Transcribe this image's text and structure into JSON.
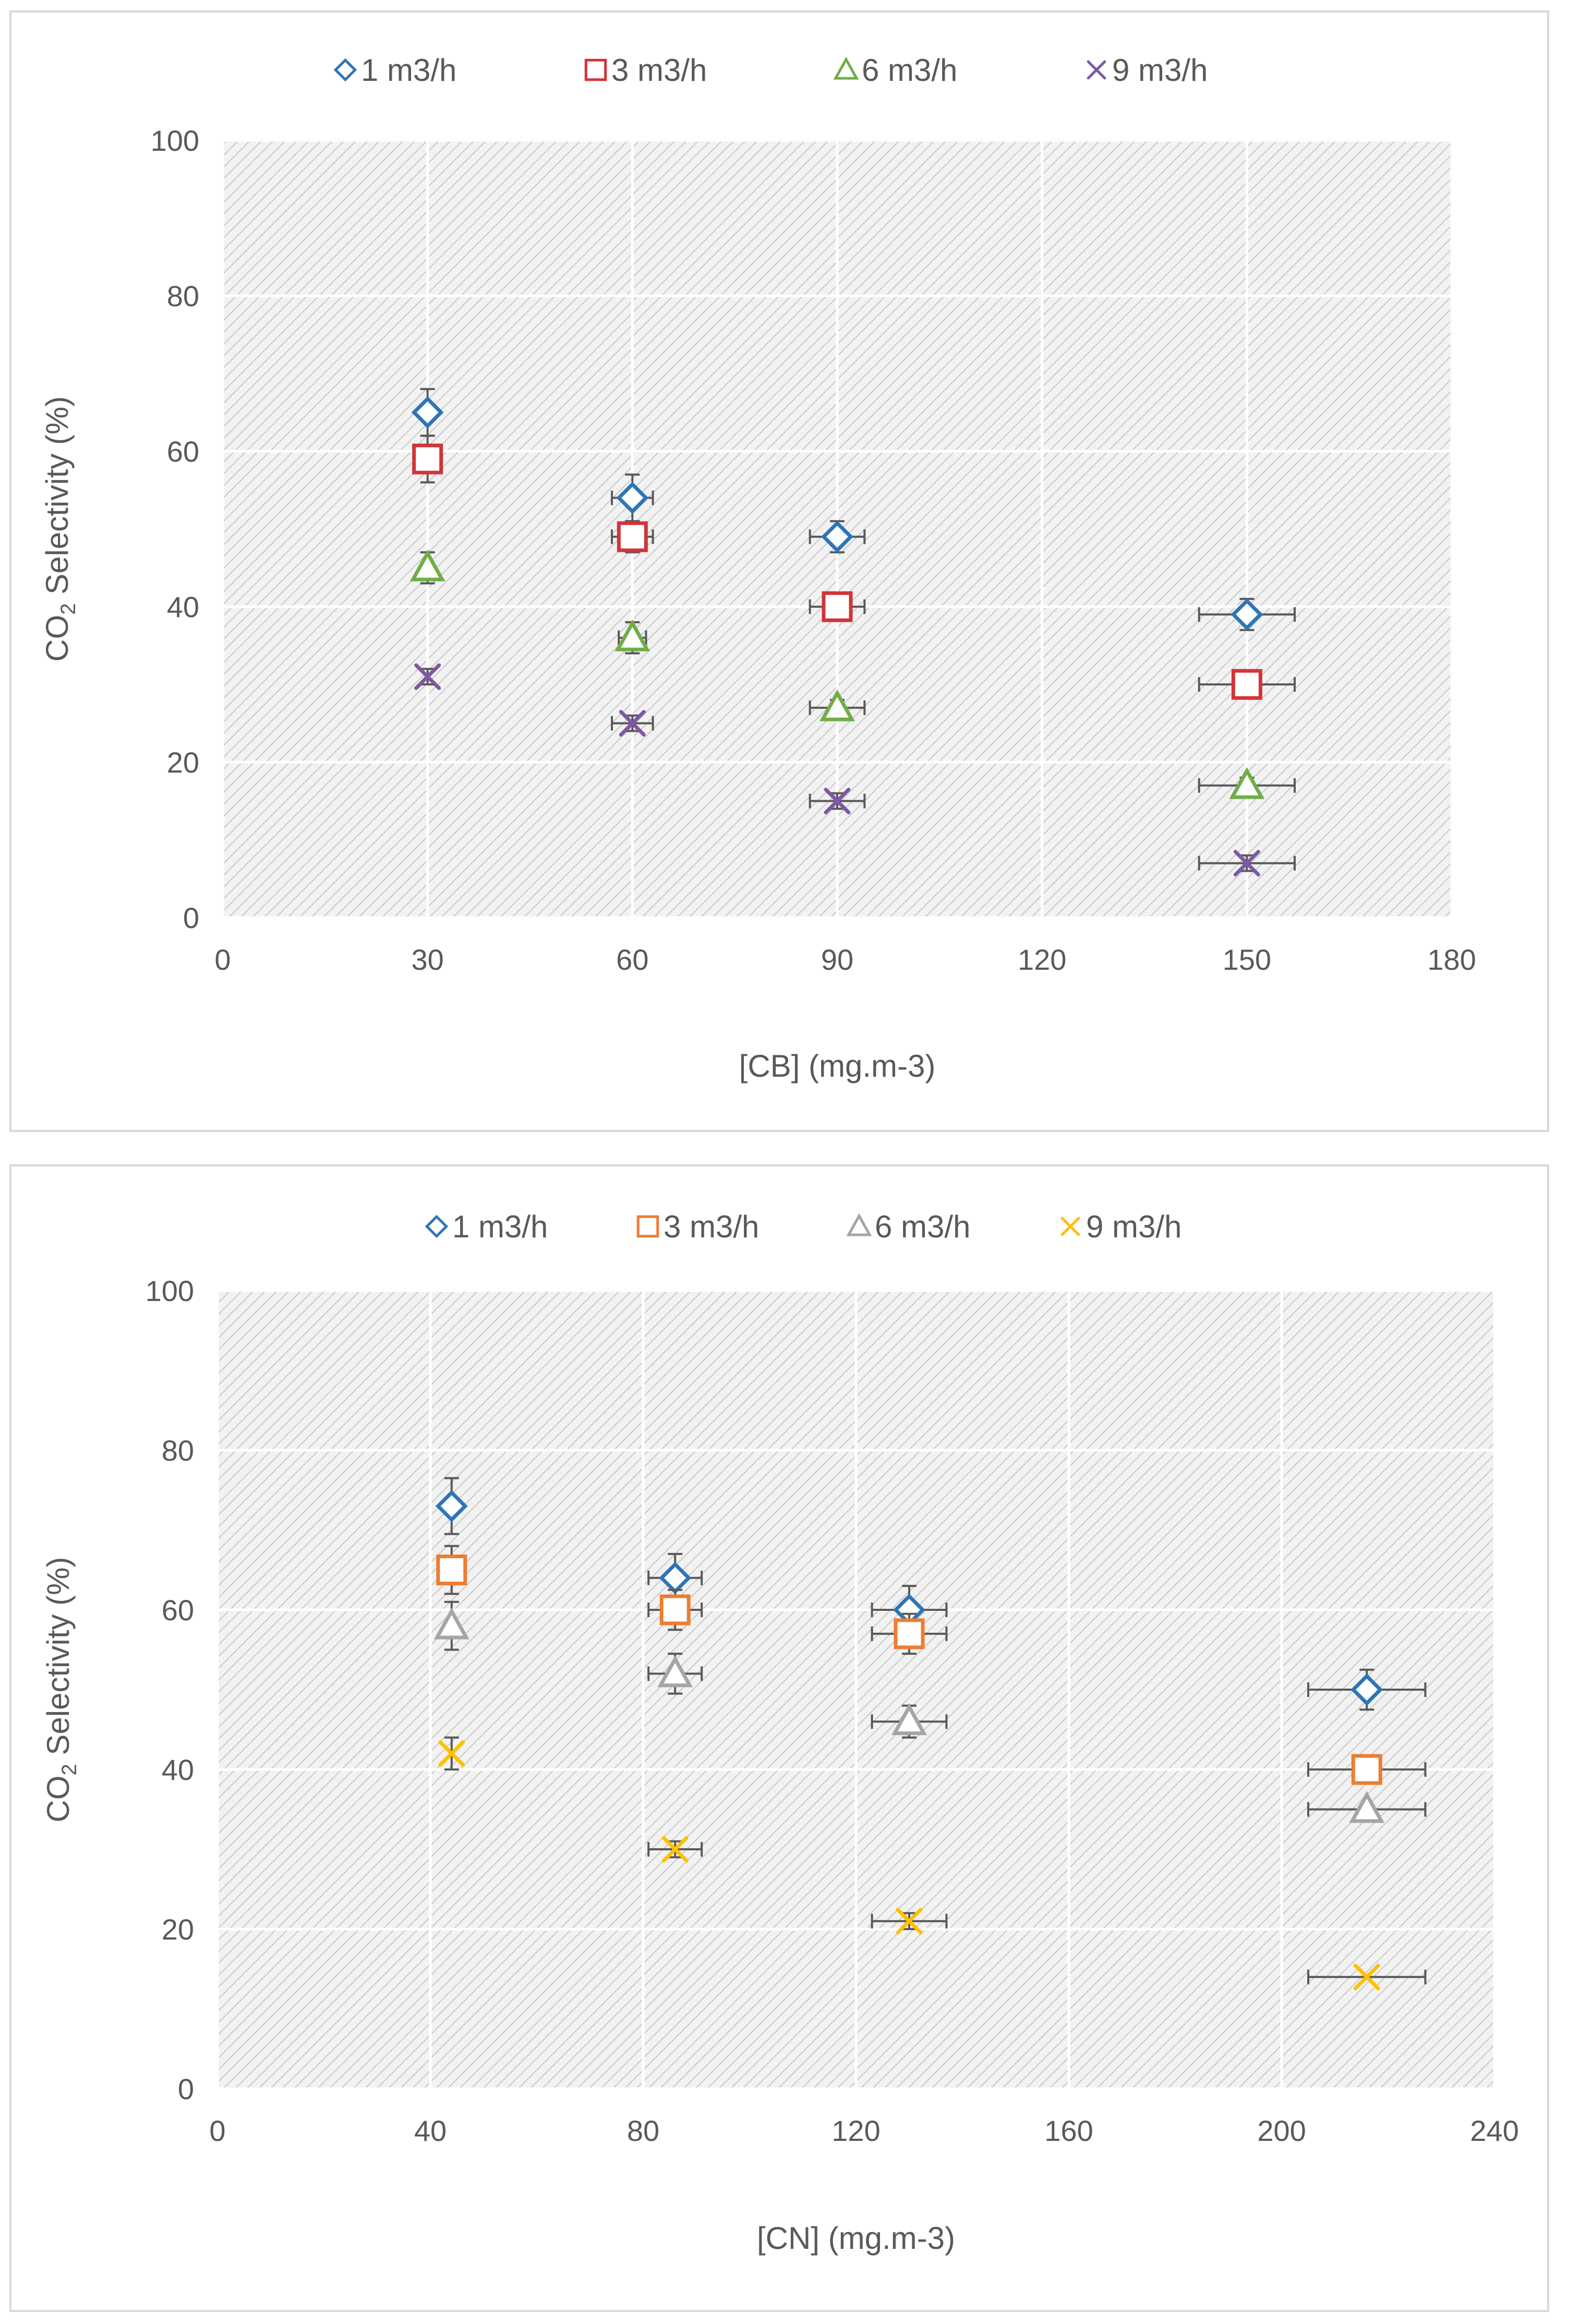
{
  "chart_data": [
    {
      "type": "scatter",
      "xlabel": "[CB] (mg.m-3)",
      "ylabel_parts": [
        "CO",
        "2",
        " Selectivity (%)"
      ],
      "xlim": [
        0,
        180
      ],
      "ylim": [
        0,
        100
      ],
      "xticks": [
        0,
        30,
        60,
        90,
        120,
        150,
        180
      ],
      "yticks": [
        0,
        20,
        40,
        60,
        80,
        100
      ],
      "grid": true,
      "legend_position": "top",
      "series": [
        {
          "name": "1 m3/h",
          "marker": "diamond",
          "color": "#2e75b6",
          "points": [
            {
              "x": 30,
              "y": 65,
              "xerr": 0,
              "yerr": 3
            },
            {
              "x": 60,
              "y": 54,
              "xerr": 3,
              "yerr": 3
            },
            {
              "x": 90,
              "y": 49,
              "xerr": 4,
              "yerr": 2
            },
            {
              "x": 150,
              "y": 39,
              "xerr": 7,
              "yerr": 2
            }
          ]
        },
        {
          "name": "3 m3/h",
          "marker": "square",
          "color": "#d13438",
          "points": [
            {
              "x": 30,
              "y": 59,
              "xerr": 0,
              "yerr": 3
            },
            {
              "x": 60,
              "y": 49,
              "xerr": 3,
              "yerr": 2
            },
            {
              "x": 90,
              "y": 40,
              "xerr": 4,
              "yerr": 1
            },
            {
              "x": 150,
              "y": 30,
              "xerr": 7,
              "yerr": 1
            }
          ]
        },
        {
          "name": "6 m3/h",
          "marker": "triangle",
          "color": "#70ad47",
          "points": [
            {
              "x": 30,
              "y": 45,
              "xerr": 0,
              "yerr": 2
            },
            {
              "x": 60,
              "y": 36,
              "xerr": 2,
              "yerr": 2
            },
            {
              "x": 90,
              "y": 27,
              "xerr": 4,
              "yerr": 1
            },
            {
              "x": 150,
              "y": 17,
              "xerr": 7,
              "yerr": 1
            }
          ]
        },
        {
          "name": "9 m3/h",
          "marker": "x",
          "color": "#7e57a6",
          "points": [
            {
              "x": 30,
              "y": 31,
              "xerr": 0,
              "yerr": 1
            },
            {
              "x": 60,
              "y": 25,
              "xerr": 3,
              "yerr": 1
            },
            {
              "x": 90,
              "y": 15,
              "xerr": 4,
              "yerr": 1
            },
            {
              "x": 150,
              "y": 7,
              "xerr": 7,
              "yerr": 1
            }
          ]
        }
      ]
    },
    {
      "type": "scatter",
      "xlabel": "[CN] (mg.m-3)",
      "ylabel_parts": [
        "CO",
        "2",
        " Selectivity (%)"
      ],
      "xlim": [
        0,
        240
      ],
      "ylim": [
        0,
        100
      ],
      "xticks": [
        0,
        40,
        80,
        120,
        160,
        200,
        240
      ],
      "yticks": [
        0,
        20,
        40,
        60,
        80,
        100
      ],
      "grid": true,
      "legend_position": "top",
      "series": [
        {
          "name": "1 m3/h",
          "marker": "diamond",
          "color": "#2e75b6",
          "points": [
            {
              "x": 44,
              "y": 73,
              "xerr": 0,
              "yerr": 3.5
            },
            {
              "x": 86,
              "y": 64,
              "xerr": 5,
              "yerr": 3
            },
            {
              "x": 130,
              "y": 60,
              "xerr": 7,
              "yerr": 3
            },
            {
              "x": 216,
              "y": 50,
              "xerr": 11,
              "yerr": 2.5
            }
          ]
        },
        {
          "name": "3 m3/h",
          "marker": "square",
          "color": "#ed7d31",
          "points": [
            {
              "x": 44,
              "y": 65,
              "xerr": 0,
              "yerr": 3
            },
            {
              "x": 86,
              "y": 60,
              "xerr": 5,
              "yerr": 2.5
            },
            {
              "x": 130,
              "y": 57,
              "xerr": 7,
              "yerr": 2.5
            },
            {
              "x": 216,
              "y": 40,
              "xerr": 11,
              "yerr": 0
            }
          ]
        },
        {
          "name": "6 m3/h",
          "marker": "triangle",
          "color": "#a5a5a5",
          "points": [
            {
              "x": 44,
              "y": 58,
              "xerr": 0,
              "yerr": 3
            },
            {
              "x": 86,
              "y": 52,
              "xerr": 5,
              "yerr": 2.5
            },
            {
              "x": 130,
              "y": 46,
              "xerr": 7,
              "yerr": 2
            },
            {
              "x": 216,
              "y": 35,
              "xerr": 11,
              "yerr": 0
            }
          ]
        },
        {
          "name": "9 m3/h",
          "marker": "x",
          "color": "#ffc000",
          "points": [
            {
              "x": 44,
              "y": 42,
              "xerr": 0,
              "yerr": 2
            },
            {
              "x": 86,
              "y": 30,
              "xerr": 5,
              "yerr": 1
            },
            {
              "x": 130,
              "y": 21,
              "xerr": 7,
              "yerr": 1
            },
            {
              "x": 216,
              "y": 14,
              "xerr": 11,
              "yerr": 0
            }
          ]
        }
      ]
    }
  ]
}
